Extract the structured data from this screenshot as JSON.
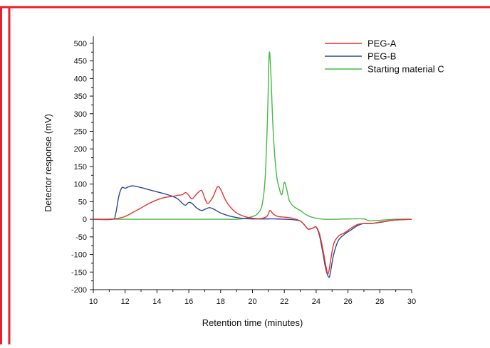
{
  "colors": {
    "frame": "#e8202e",
    "axis": "#111111",
    "PEG-A": "#e8322c",
    "PEG-B": "#2a46a0",
    "Starting material C": "#46b846"
  },
  "chart_data": {
    "type": "line",
    "title": "",
    "xlabel": "Retention time (minutes)",
    "ylabel": "Detector response (mV)",
    "xlim": [
      10,
      30
    ],
    "ylim": [
      -200,
      520
    ],
    "xticks": [
      10,
      12,
      14,
      16,
      18,
      20,
      22,
      24,
      26,
      28,
      30
    ],
    "yticks": [
      -200,
      -150,
      -100,
      -50,
      0,
      50,
      100,
      150,
      200,
      250,
      300,
      350,
      400,
      450,
      500
    ],
    "grid": false,
    "legend_position": "top-right",
    "series": [
      {
        "name": "PEG-A",
        "color": "#e8322c",
        "x": [
          10,
          11,
          11.5,
          12,
          12.5,
          13,
          13.5,
          14,
          14.5,
          15,
          15.3,
          15.6,
          15.8,
          16.0,
          16.2,
          16.5,
          16.8,
          17.0,
          17.2,
          17.5,
          17.8,
          18.0,
          18.3,
          18.6,
          19.0,
          19.5,
          20.0,
          20.5,
          20.9,
          21.1,
          21.3,
          21.6,
          22.0,
          22.5,
          23.0,
          23.3,
          23.5,
          23.8,
          24.0,
          24.2,
          24.4,
          24.6,
          24.75,
          24.9,
          25.1,
          25.4,
          25.8,
          26.2,
          26.6,
          27.0,
          27.5,
          28.0,
          28.5,
          29.0,
          30.0
        ],
        "y": [
          0,
          0,
          2,
          8,
          20,
          32,
          45,
          55,
          62,
          65,
          68,
          70,
          76,
          68,
          58,
          72,
          82,
          60,
          45,
          62,
          92,
          85,
          55,
          35,
          18,
          8,
          3,
          2,
          8,
          25,
          15,
          8,
          6,
          3,
          -5,
          -18,
          -28,
          -25,
          -22,
          -40,
          -80,
          -130,
          -155,
          -120,
          -70,
          -48,
          -38,
          -25,
          -15,
          -12,
          -12,
          -8,
          -5,
          -2,
          0
        ]
      },
      {
        "name": "PEG-B",
        "color": "#2a46a0",
        "x": [
          10,
          11.2,
          11.4,
          11.6,
          11.8,
          12.0,
          12.2,
          12.5,
          13.0,
          13.5,
          14.0,
          14.5,
          15.0,
          15.3,
          15.6,
          15.8,
          16.0,
          16.2,
          16.5,
          16.8,
          17.0,
          17.3,
          17.6,
          18.0,
          18.5,
          19.0,
          19.5,
          20.0,
          20.5,
          21.0,
          21.5,
          22.0,
          22.5,
          23.0,
          23.3,
          23.5,
          23.8,
          24.0,
          24.2,
          24.4,
          24.6,
          24.8,
          24.9,
          25.1,
          25.4,
          25.8,
          26.2,
          26.6,
          27.0,
          27.5,
          28.0,
          28.5,
          29.0,
          30.0
        ],
        "y": [
          0,
          0,
          15,
          65,
          90,
          88,
          92,
          95,
          90,
          84,
          78,
          72,
          65,
          58,
          45,
          40,
          48,
          45,
          32,
          25,
          28,
          33,
          28,
          18,
          10,
          5,
          2,
          1,
          1,
          1,
          1,
          0,
          -1,
          -5,
          -18,
          -28,
          -25,
          -22,
          -45,
          -90,
          -140,
          -165,
          -150,
          -100,
          -60,
          -42,
          -30,
          -18,
          -12,
          -12,
          -9,
          -5,
          -2,
          0
        ]
      },
      {
        "name": "Starting material C",
        "color": "#46b846",
        "x": [
          10,
          14,
          18,
          19.0,
          19.5,
          20.0,
          20.3,
          20.6,
          20.8,
          20.95,
          21.05,
          21.15,
          21.3,
          21.5,
          21.7,
          21.85,
          22.0,
          22.15,
          22.3,
          22.5,
          22.8,
          23.0,
          23.3,
          23.6,
          24.0,
          24.5,
          25.0,
          26.0,
          27.0,
          27.3,
          28.0,
          29.0,
          30.0
        ],
        "y": [
          0,
          0,
          0,
          0,
          2,
          8,
          15,
          40,
          120,
          300,
          470,
          420,
          250,
          130,
          85,
          70,
          105,
          85,
          55,
          40,
          30,
          25,
          15,
          8,
          3,
          0,
          0,
          1,
          1,
          -4,
          -3,
          0,
          0
        ]
      }
    ]
  }
}
